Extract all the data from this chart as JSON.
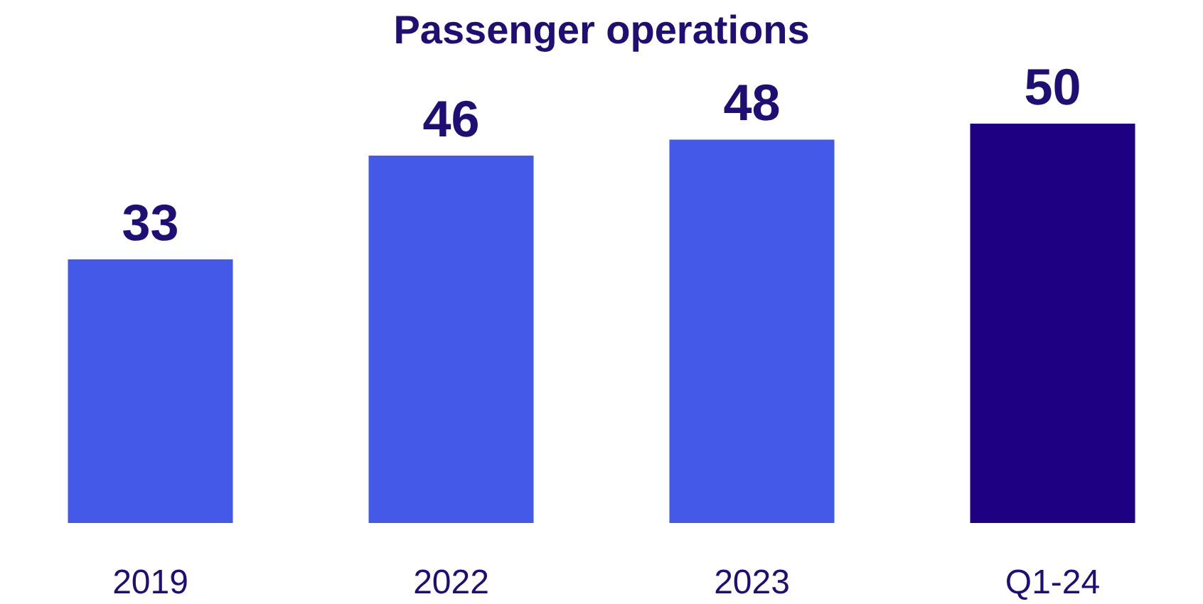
{
  "chart_data": {
    "type": "bar",
    "title": "Passenger operations",
    "categories": [
      "2019",
      "2022",
      "2023",
      "Q1-24"
    ],
    "values": [
      33,
      46,
      48,
      50
    ],
    "colors": [
      "#4459e8",
      "#4459e8",
      "#4459e8",
      "#1e0082"
    ],
    "tick_labels": "x",
    "data_labels": true
  }
}
